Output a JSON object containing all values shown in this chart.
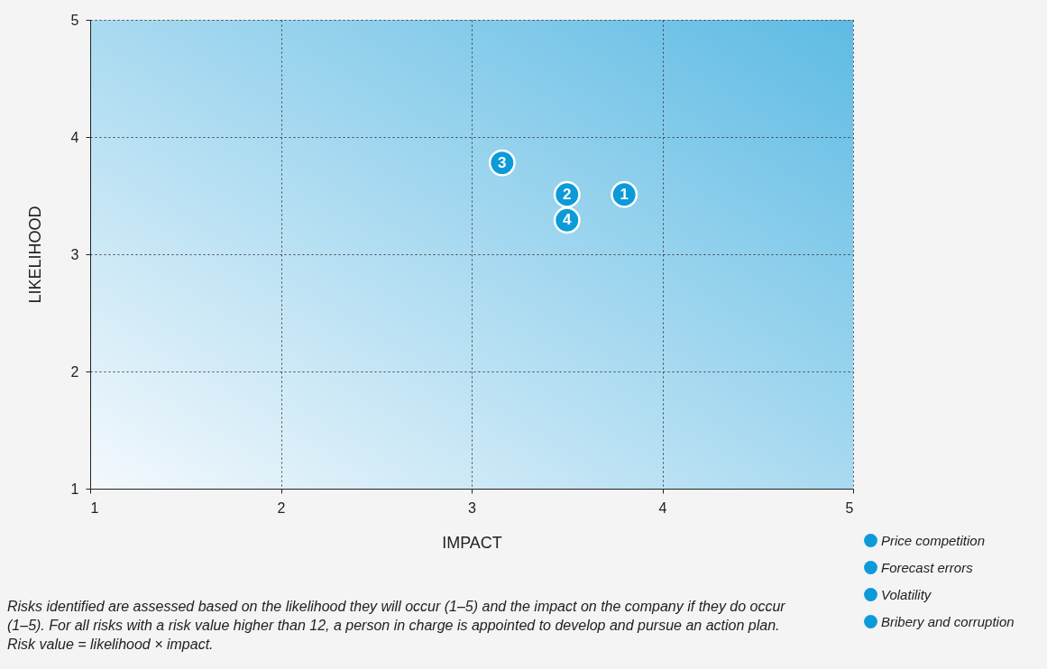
{
  "chart_data": {
    "type": "scatter",
    "xlabel": "IMPACT",
    "ylabel": "LIKELIHOOD",
    "xlim": [
      1,
      5
    ],
    "ylim": [
      1,
      5
    ],
    "xticks": [
      1,
      2,
      3,
      4,
      5
    ],
    "yticks": [
      1,
      2,
      3,
      4,
      5
    ],
    "grid": true,
    "legend": "bottom right",
    "marker": "circle",
    "series": [
      {
        "name": "Price competition",
        "color": "#0c9ad8",
        "x": [
          3.8
        ],
        "values": [
          3.51
        ]
      },
      {
        "name": "Forecast errors",
        "color": "#0c9ad8",
        "x": [
          3.5
        ],
        "values": [
          3.51
        ]
      },
      {
        "name": "Volatility",
        "color": "#0c9ad8",
        "x": [
          3.16
        ],
        "values": [
          3.78
        ]
      },
      {
        "name": "Bribery and corruption",
        "color": "#0c9ad8",
        "x": [
          3.5
        ],
        "values": [
          3.29
        ]
      }
    ],
    "annotations": [
      {
        "text": "1",
        "x": 3.8,
        "y": 3.51
      },
      {
        "text": "2",
        "x": 3.5,
        "y": 3.51
      },
      {
        "text": "3",
        "x": 3.16,
        "y": 3.78
      },
      {
        "text": "4",
        "x": 3.5,
        "y": 3.29
      },
      "Risks identified are assessed based on the likelihood they will occur (1–5) and the impact on the company if they do occur (1–5). For all risks with a risk value higher than 12, a person in charge is appointed to develop and pursue an action plan. Risk value = likelihood × impact."
    ]
  }
}
